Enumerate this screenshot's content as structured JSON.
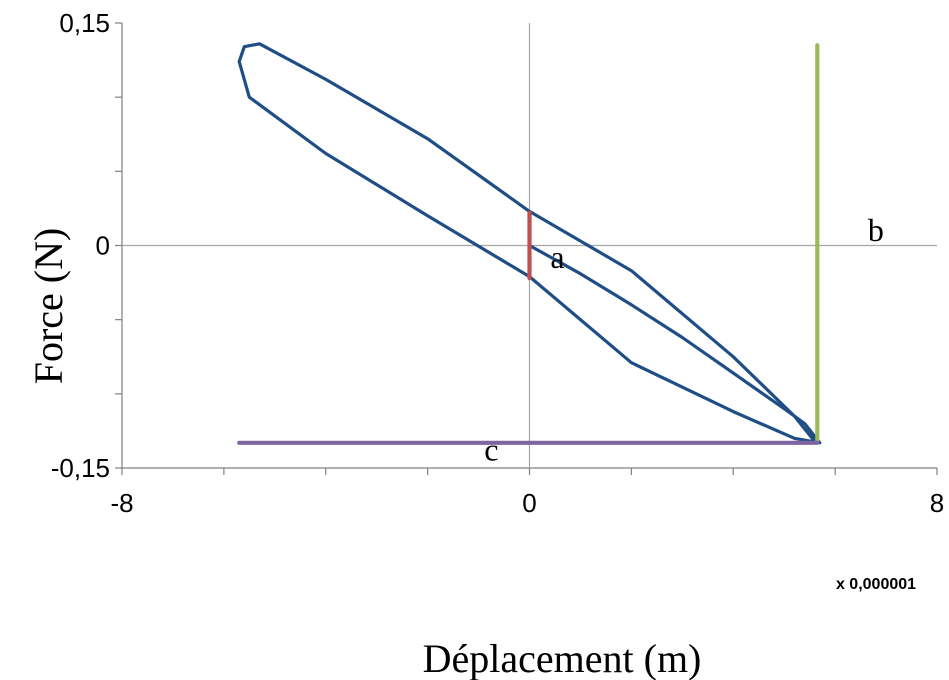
{
  "chart_data": {
    "type": "line",
    "title": "",
    "xlabel": "Déplacement (m)",
    "ylabel": "Force (N)",
    "x_multiplier_label": "x 0,000001",
    "xlim": [
      -8,
      8
    ],
    "ylim": [
      -0.15,
      0.15
    ],
    "x_ticks": [
      {
        "value": -8,
        "label": "-8"
      },
      {
        "value": 0,
        "label": "0"
      },
      {
        "value": 8,
        "label": "8"
      }
    ],
    "y_ticks": [
      {
        "value": 0.15,
        "label": "0,15"
      },
      {
        "value": 0,
        "label": "0"
      },
      {
        "value": -0.15,
        "label": "-0,15"
      }
    ],
    "x_minor_ticks": [
      -6,
      -4,
      -2,
      2,
      4,
      6
    ],
    "y_minor_ticks": [
      0.1,
      0.05,
      -0.05,
      -0.1
    ],
    "grid": false,
    "zero_lines": true,
    "legend": "none",
    "colors": {
      "loop": "#1f4e86",
      "a": "#c0504d",
      "b": "#9bbb59",
      "c": "#8064a2",
      "zero_line": "#a6a6a6",
      "axis": "#808080"
    },
    "series": [
      {
        "values_xy": [
          [
            0,
            0
          ],
          [
            1,
            -0.019
          ],
          [
            2,
            -0.04
          ],
          [
            3,
            -0.062
          ],
          [
            4,
            -0.086
          ],
          [
            5,
            -0.11
          ],
          [
            5.4,
            -0.12
          ],
          [
            5.7,
            -0.133
          ],
          [
            5.2,
            -0.13
          ],
          [
            4,
            -0.112
          ],
          [
            2,
            -0.079
          ],
          [
            0,
            -0.021
          ],
          [
            -2,
            0.02
          ],
          [
            -4,
            0.062
          ],
          [
            -5.5,
            0.1
          ],
          [
            -5.7,
            0.124
          ],
          [
            -5.6,
            0.134
          ],
          [
            -5.3,
            0.136
          ],
          [
            -4,
            0.112
          ],
          [
            -2,
            0.072
          ],
          [
            0,
            0.023
          ],
          [
            2,
            -0.017
          ],
          [
            4,
            -0.075
          ],
          [
            5.2,
            -0.115
          ],
          [
            5.55,
            -0.13
          ],
          [
            5.6,
            -0.132
          ]
        ]
      },
      {
        "label": "a",
        "values_xy": [
          [
            0,
            0.022
          ],
          [
            0,
            -0.022
          ]
        ]
      },
      {
        "label": "b",
        "values_xy": [
          [
            5.65,
            0.135
          ],
          [
            5.65,
            -0.132
          ]
        ]
      },
      {
        "label": "c",
        "values_xy": [
          [
            -5.7,
            -0.133
          ],
          [
            5.65,
            -0.133
          ]
        ]
      }
    ],
    "annotations": [
      {
        "text": "a",
        "x": 0.55,
        "y": -0.015
      },
      {
        "text": "b",
        "x": 6.8,
        "y": 0.003
      },
      {
        "text": "c",
        "x": -0.75,
        "y": -0.145
      }
    ]
  }
}
